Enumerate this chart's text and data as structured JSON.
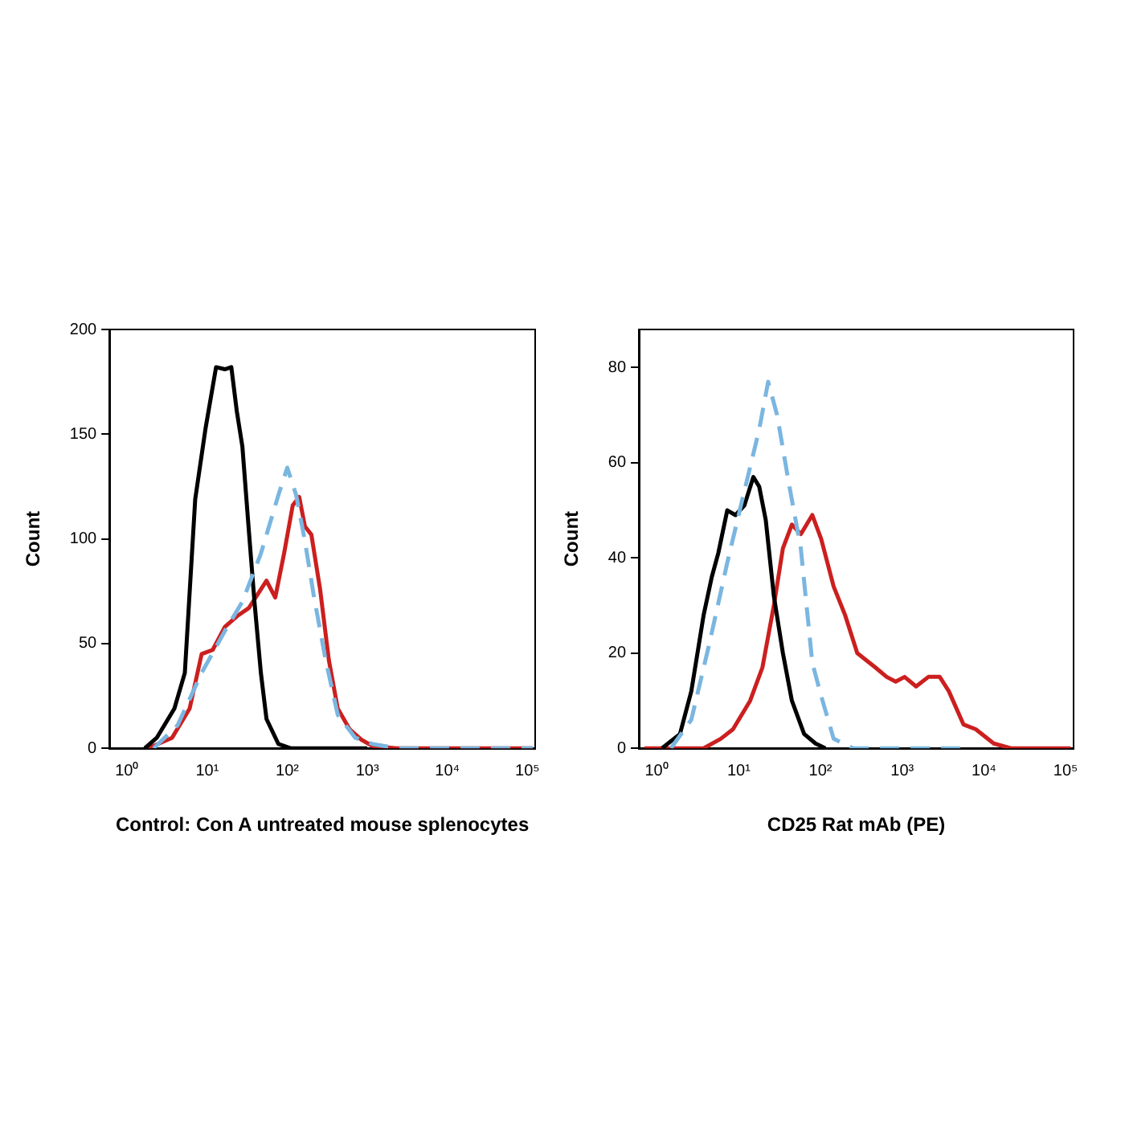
{
  "chart_data": [
    {
      "type": "line",
      "xlabel": "Control: Con A untreated mouse splenocytes",
      "ylabel": "Count",
      "log": "x",
      "grid": false,
      "legend": false,
      "marker": "none",
      "xlim": [
        0.6,
        125000
      ],
      "xticks": [
        {
          "value": 1,
          "label": "10⁰"
        },
        {
          "value": 10,
          "label": "10¹"
        },
        {
          "value": 100,
          "label": "10²"
        },
        {
          "value": 1000,
          "label": "10³"
        },
        {
          "value": 10000,
          "label": "10⁴"
        },
        {
          "value": 100000,
          "label": "10⁵"
        }
      ],
      "ylim": [
        0,
        200
      ],
      "yticks": [
        0,
        50,
        100,
        150,
        200
      ],
      "series": [
        {
          "color": "#7ab6e0",
          "line_style": "dashed",
          "x": [
            2.14,
            4.27,
            8.51,
            16.6,
            27.5,
            46.8,
            77.6,
            100,
            129,
            166,
            214,
            302,
            427,
            708,
            1170,
            2340,
            117000
          ],
          "values": [
            0,
            11,
            36,
            56,
            70,
            93,
            121,
            134,
            121,
            99,
            73,
            42,
            16,
            5,
            2,
            0,
            0
          ]
        },
        {
          "color": "#000000",
          "line_style": "solid",
          "x": [
            1.66,
            2.34,
            3.89,
            5.25,
            7.08,
            9.55,
            12.9,
            16.6,
            20,
            23.4,
            27.5,
            33.1,
            38.9,
            46.8,
            55,
            77.6,
            110,
            1000
          ],
          "values": [
            0,
            5,
            19,
            36,
            119,
            153,
            182,
            181,
            182,
            161,
            144,
            104,
            70,
            36,
            14,
            2,
            0,
            0
          ]
        },
        {
          "color": "#cc1f1f",
          "line_style": "solid",
          "x": [
            1.82,
            3.63,
            6.03,
            8.51,
            11.7,
            16.6,
            23.4,
            33.1,
            55,
            70.8,
            91.2,
            117,
            141,
            166,
            200,
            257,
            331,
            427,
            603,
            851,
            1170,
            2340,
            117000
          ],
          "values": [
            0,
            5,
            19,
            45,
            47,
            58,
            63,
            67,
            80,
            72,
            93,
            116,
            120,
            106,
            102,
            76,
            42,
            19,
            9,
            4,
            1,
            0,
            0
          ]
        }
      ]
    },
    {
      "type": "line",
      "xlabel": "CD25 Rat mAb (PE)",
      "ylabel": "Count",
      "log": "x",
      "grid": false,
      "legend": false,
      "marker": "none",
      "xlim": [
        0.6,
        125000
      ],
      "xticks": [
        {
          "value": 1,
          "label": "10⁰"
        },
        {
          "value": 10,
          "label": "10¹"
        },
        {
          "value": 100,
          "label": "10²"
        },
        {
          "value": 1000,
          "label": "10³"
        },
        {
          "value": 10000,
          "label": "10⁴"
        },
        {
          "value": 100000,
          "label": "10⁵"
        }
      ],
      "ylim": [
        0,
        88
      ],
      "yticks": [
        0,
        20,
        40,
        60,
        80
      ],
      "series": [
        {
          "color": "#7ab6e0",
          "line_style": "dashed",
          "x": [
            1.48,
            2.63,
            4.37,
            7.24,
            11.7,
            17.8,
            22.9,
            29.5,
            41.7,
            57.5,
            79.4,
            102,
            145,
            250,
            6800
          ],
          "values": [
            0,
            6,
            22,
            39,
            54,
            67,
            77,
            70,
            55,
            42,
            18,
            11,
            2,
            0,
            0
          ]
        },
        {
          "color": "#000000",
          "line_style": "solid",
          "x": [
            1.15,
            1.91,
            2.63,
            3.72,
            4.68,
            5.62,
            7.24,
            9.12,
            11.7,
            15.1,
            17.8,
            21.4,
            26.9,
            34.7,
            44.7,
            63.1,
            87.1,
            115
          ],
          "values": [
            0,
            3,
            12,
            28,
            36,
            41,
            50,
            49,
            51,
            57,
            55,
            48,
            32,
            20,
            10,
            3,
            1,
            0
          ]
        },
        {
          "color": "#cc1f1f",
          "line_style": "solid",
          "x": [
            0.7,
            3.72,
            6.03,
            8.51,
            13.8,
            19.5,
            26.9,
            34.7,
            44.7,
            57.5,
            79.4,
            102,
            145,
            200,
            282,
            468,
            646,
            832,
            1070,
            1480,
            2090,
            2880,
            3720,
            5620,
            7940,
            13200,
            21400,
            115000
          ],
          "values": [
            0,
            0,
            2,
            4,
            10,
            17,
            30,
            42,
            47,
            45,
            49,
            44,
            34,
            28,
            20,
            17,
            15,
            14,
            15,
            13,
            15,
            15,
            12,
            5,
            4,
            1,
            0,
            0
          ]
        }
      ]
    }
  ]
}
